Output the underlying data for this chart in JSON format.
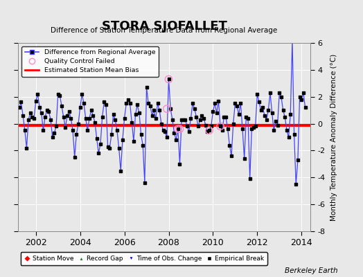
{
  "title": "STORA SJOFALLET",
  "subtitle": "Difference of Station Temperature Data from Regional Average",
  "ylabel": "Monthly Temperature Anomaly Difference (°C)",
  "xlabel_years": [
    2002,
    2004,
    2006,
    2008,
    2010,
    2012,
    2014
  ],
  "xlim": [
    2001.2,
    2014.4
  ],
  "ylim": [
    -8,
    6
  ],
  "yticks": [
    -8,
    -6,
    -4,
    -2,
    0,
    2,
    4,
    6
  ],
  "mean_bias": -0.15,
  "line_color": "#4444ff",
  "dot_color": "#000000",
  "bias_color": "#ff0000",
  "background_color": "#e8e8e8",
  "grid_color": "#ffffff",
  "watermark": "Berkeley Earth",
  "data": [
    [
      2001.25,
      1.2
    ],
    [
      2001.333,
      1.6
    ],
    [
      2001.417,
      0.6
    ],
    [
      2001.5,
      -0.5
    ],
    [
      2001.583,
      -1.8
    ],
    [
      2001.667,
      0.3
    ],
    [
      2001.75,
      0.8
    ],
    [
      2001.833,
      0.5
    ],
    [
      2001.917,
      0.4
    ],
    [
      2002.0,
      1.7
    ],
    [
      2002.083,
      2.2
    ],
    [
      2002.167,
      1.2
    ],
    [
      2002.25,
      0.8
    ],
    [
      2002.333,
      -0.5
    ],
    [
      2002.417,
      0.5
    ],
    [
      2002.5,
      1.0
    ],
    [
      2002.583,
      0.9
    ],
    [
      2002.667,
      0.3
    ],
    [
      2002.75,
      -1.0
    ],
    [
      2002.833,
      -0.7
    ],
    [
      2002.917,
      -0.2
    ],
    [
      2003.0,
      2.2
    ],
    [
      2003.083,
      2.1
    ],
    [
      2003.167,
      1.3
    ],
    [
      2003.25,
      0.5
    ],
    [
      2003.333,
      -0.3
    ],
    [
      2003.417,
      0.6
    ],
    [
      2003.5,
      0.9
    ],
    [
      2003.583,
      0.4
    ],
    [
      2003.667,
      -0.5
    ],
    [
      2003.75,
      -2.5
    ],
    [
      2003.833,
      -0.8
    ],
    [
      2003.917,
      0.0
    ],
    [
      2004.0,
      1.2
    ],
    [
      2004.083,
      2.2
    ],
    [
      2004.167,
      1.5
    ],
    [
      2004.25,
      0.4
    ],
    [
      2004.333,
      -0.5
    ],
    [
      2004.417,
      0.4
    ],
    [
      2004.5,
      1.0
    ],
    [
      2004.583,
      0.6
    ],
    [
      2004.667,
      0.1
    ],
    [
      2004.75,
      -1.1
    ],
    [
      2004.833,
      -2.2
    ],
    [
      2004.917,
      -1.5
    ],
    [
      2005.0,
      0.5
    ],
    [
      2005.083,
      1.6
    ],
    [
      2005.167,
      1.4
    ],
    [
      2005.25,
      -1.7
    ],
    [
      2005.333,
      -1.8
    ],
    [
      2005.417,
      -0.8
    ],
    [
      2005.5,
      0.7
    ],
    [
      2005.583,
      0.3
    ],
    [
      2005.667,
      -0.5
    ],
    [
      2005.75,
      -1.8
    ],
    [
      2005.833,
      -3.5
    ],
    [
      2005.917,
      -1.2
    ],
    [
      2006.0,
      0.4
    ],
    [
      2006.083,
      1.5
    ],
    [
      2006.167,
      1.8
    ],
    [
      2006.25,
      1.5
    ],
    [
      2006.333,
      0.1
    ],
    [
      2006.417,
      -1.3
    ],
    [
      2006.5,
      0.7
    ],
    [
      2006.583,
      1.4
    ],
    [
      2006.667,
      0.8
    ],
    [
      2006.75,
      -0.8
    ],
    [
      2006.833,
      -1.6
    ],
    [
      2006.917,
      -4.4
    ],
    [
      2007.0,
      2.7
    ],
    [
      2007.083,
      1.5
    ],
    [
      2007.167,
      1.3
    ],
    [
      2007.25,
      0.6
    ],
    [
      2007.333,
      1.0
    ],
    [
      2007.417,
      0.4
    ],
    [
      2007.5,
      1.5
    ],
    [
      2007.583,
      1.0
    ],
    [
      2007.667,
      0.0
    ],
    [
      2007.75,
      -0.5
    ],
    [
      2007.833,
      -0.6
    ],
    [
      2007.917,
      -1.0
    ],
    [
      2008.0,
      3.3
    ],
    [
      2008.083,
      1.1
    ],
    [
      2008.167,
      0.3
    ],
    [
      2008.25,
      -0.7
    ],
    [
      2008.333,
      -1.2
    ],
    [
      2008.417,
      -0.4
    ],
    [
      2008.5,
      -3.0
    ],
    [
      2008.583,
      0.3
    ],
    [
      2008.667,
      0.3
    ],
    [
      2008.75,
      0.3
    ],
    [
      2008.833,
      -0.2
    ],
    [
      2008.917,
      -0.6
    ],
    [
      2009.0,
      0.4
    ],
    [
      2009.083,
      1.5
    ],
    [
      2009.167,
      1.1
    ],
    [
      2009.25,
      0.5
    ],
    [
      2009.333,
      -0.2
    ],
    [
      2009.417,
      0.3
    ],
    [
      2009.5,
      0.6
    ],
    [
      2009.583,
      0.4
    ],
    [
      2009.667,
      -0.1
    ],
    [
      2009.75,
      -0.6
    ],
    [
      2009.833,
      -0.5
    ],
    [
      2009.917,
      -0.2
    ],
    [
      2010.0,
      0.9
    ],
    [
      2010.083,
      1.5
    ],
    [
      2010.167,
      0.8
    ],
    [
      2010.25,
      1.7
    ],
    [
      2010.333,
      -0.2
    ],
    [
      2010.417,
      -0.5
    ],
    [
      2010.5,
      0.5
    ],
    [
      2010.583,
      0.5
    ],
    [
      2010.667,
      -0.4
    ],
    [
      2010.75,
      -1.6
    ],
    [
      2010.833,
      -2.4
    ],
    [
      2010.917,
      0.0
    ],
    [
      2011.0,
      1.5
    ],
    [
      2011.083,
      1.3
    ],
    [
      2011.167,
      0.7
    ],
    [
      2011.25,
      1.5
    ],
    [
      2011.333,
      -0.4
    ],
    [
      2011.417,
      -2.6
    ],
    [
      2011.5,
      0.5
    ],
    [
      2011.583,
      0.4
    ],
    [
      2011.667,
      -4.1
    ],
    [
      2011.75,
      -0.4
    ],
    [
      2011.833,
      -0.3
    ],
    [
      2011.917,
      -0.2
    ],
    [
      2012.0,
      2.2
    ],
    [
      2012.083,
      1.6
    ],
    [
      2012.167,
      1.0
    ],
    [
      2012.25,
      1.2
    ],
    [
      2012.333,
      0.6
    ],
    [
      2012.417,
      0.3
    ],
    [
      2012.5,
      1.0
    ],
    [
      2012.583,
      2.3
    ],
    [
      2012.667,
      0.8
    ],
    [
      2012.75,
      -0.5
    ],
    [
      2012.833,
      0.2
    ],
    [
      2012.917,
      -0.1
    ],
    [
      2013.0,
      2.3
    ],
    [
      2013.083,
      2.0
    ],
    [
      2013.167,
      1.0
    ],
    [
      2013.25,
      0.5
    ],
    [
      2013.333,
      -0.5
    ],
    [
      2013.417,
      -1.0
    ],
    [
      2013.5,
      0.7
    ],
    [
      2013.583,
      6.2
    ],
    [
      2013.667,
      -0.8
    ],
    [
      2013.75,
      -4.5
    ],
    [
      2013.833,
      -2.7
    ],
    [
      2013.917,
      2.0
    ],
    [
      2014.0,
      1.8
    ],
    [
      2014.083,
      2.3
    ],
    [
      2014.167,
      1.2
    ]
  ],
  "qc_failed": [
    [
      2007.917,
      1.1
    ],
    [
      2008.0,
      3.3
    ],
    [
      2008.417,
      -0.4
    ],
    [
      2008.5,
      -0.4
    ],
    [
      2009.833,
      -0.5
    ],
    [
      2010.333,
      -0.2
    ]
  ]
}
